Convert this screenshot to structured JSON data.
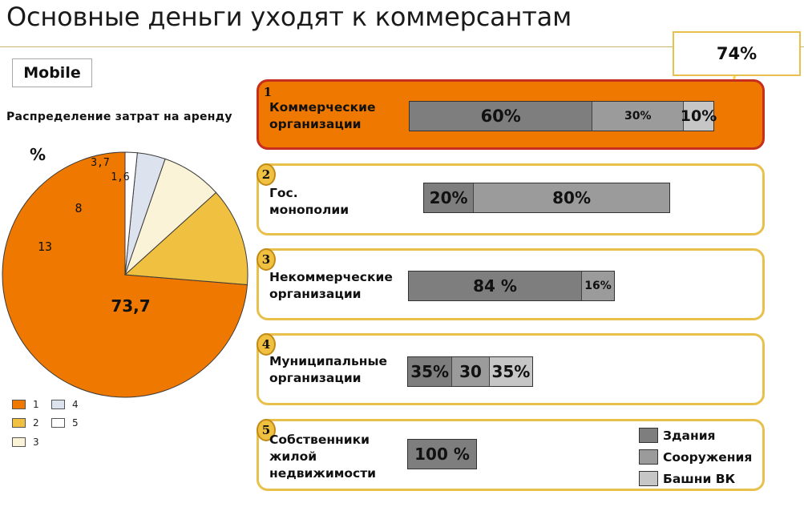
{
  "title": "Основные деньги уходят к коммерсантам",
  "badge": "Mobile",
  "callout": "74%",
  "chart_data": [
    {
      "type": "pie",
      "title": "Распределение затрат на аренду",
      "unit": "%",
      "categories": [
        "1",
        "2",
        "3",
        "4",
        "5"
      ],
      "values": [
        73.7,
        13,
        8,
        3.7,
        1.6
      ],
      "labels": [
        "73,7",
        "13",
        "8",
        "3,7",
        "1,6"
      ],
      "colors": [
        "#ee7800",
        "#f0c040",
        "#fbf3d8",
        "#dde3ee",
        "#ffffff"
      ],
      "legend": "bottom-left"
    },
    {
      "type": "bar",
      "orientation": "horizontal-stacked",
      "categories": [
        "Коммерческие организации",
        "Гос. монополии",
        "Некоммерческие организации",
        "Муниципальные организации",
        "Собственники жилой недвижимости"
      ],
      "series": [
        {
          "name": "Здания",
          "color": "#7e7e7e",
          "values": [
            60,
            20,
            84,
            35,
            100
          ],
          "labels": [
            "60%",
            "20%",
            "84 %",
            "35%",
            "100 %"
          ]
        },
        {
          "name": "Сооружения",
          "color": "#9b9b9b",
          "values": [
            30,
            80,
            16,
            30,
            0
          ],
          "labels": [
            "30%",
            "80%",
            "16%",
            "30",
            ""
          ]
        },
        {
          "name": "Башни ВК",
          "color": "#c6c6c6",
          "values": [
            10,
            0,
            0,
            35,
            0
          ],
          "labels": [
            "10%",
            "",
            "",
            "35%",
            ""
          ]
        }
      ],
      "legend": "bottom-right"
    }
  ],
  "panels": [
    {
      "num": "1",
      "lines": [
        "Коммерческие",
        "организации"
      ],
      "active": true
    },
    {
      "num": "2",
      "lines": [
        "Гос.",
        "монополии"
      ],
      "active": false
    },
    {
      "num": "3",
      "lines": [
        "Некоммерческие",
        "организации"
      ],
      "active": false
    },
    {
      "num": "4",
      "lines": [
        "Муниципальные",
        "организации"
      ],
      "active": false
    },
    {
      "num": "5",
      "lines": [
        "Собственники",
        "жилой",
        "недвижимости"
      ],
      "active": false
    }
  ]
}
